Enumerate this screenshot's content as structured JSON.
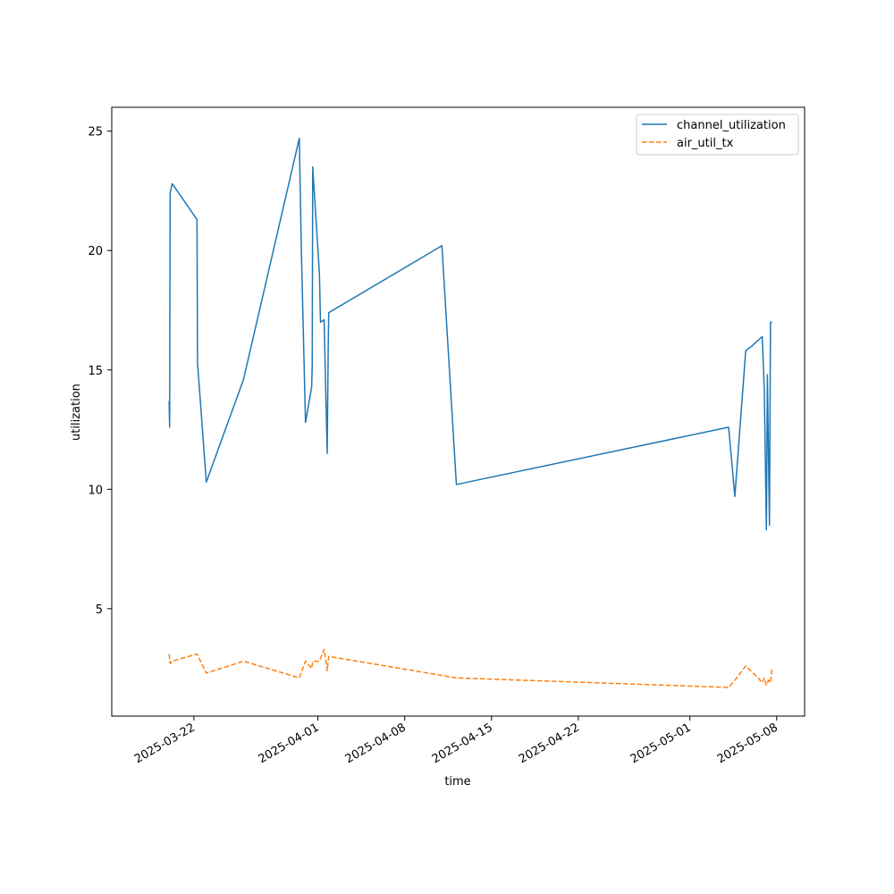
{
  "chart_data": {
    "type": "line",
    "title": "",
    "xlabel": "time",
    "ylabel": "utilization",
    "x_tick_labels": [
      "2025-03-22",
      "2025-04-01",
      "2025-04-08",
      "2025-04-15",
      "2025-04-22",
      "2025-05-01",
      "2025-05-08"
    ],
    "y_tick_labels": [
      "5",
      "10",
      "15",
      "20",
      "25"
    ],
    "xlim": [
      "2025-03-15T09:00",
      "2025-05-10T06:00"
    ],
    "ylim": [
      0.5,
      26.0
    ],
    "legend_position": "top-right",
    "grid": false,
    "series": [
      {
        "name": "channel_utilization",
        "color": "#1f77b4",
        "line_style": "solid",
        "x": [
          "2025-03-20T00:00",
          "2025-03-20T01:00",
          "2025-03-20T02:00",
          "2025-03-20T03:00",
          "2025-03-20T06:00",
          "2025-03-22T06:00",
          "2025-03-22T07:00",
          "2025-03-23T00:00",
          "2025-03-26T00:00",
          "2025-03-30T12:00",
          "2025-03-30T16:00",
          "2025-03-31T00:00",
          "2025-03-31T12:00",
          "2025-03-31T13:00",
          "2025-03-31T14:00",
          "2025-04-01T03:00",
          "2025-04-01T05:00",
          "2025-04-01T12:00",
          "2025-04-01T18:00",
          "2025-04-01T20:00",
          "2025-04-01T21:00",
          "2025-04-11T00:00",
          "2025-04-12T04:00",
          "2025-05-04T03:00",
          "2025-05-04T15:00",
          "2025-05-05T12:00",
          "2025-05-06T00:00",
          "2025-05-06T20:00",
          "2025-05-07T00:00",
          "2025-05-07T04:00",
          "2025-05-07T06:00",
          "2025-05-07T10:00",
          "2025-05-07T12:00",
          "2025-05-07T15:00"
        ],
        "values": [
          13.7,
          12.6,
          22.4,
          22.5,
          22.8,
          21.3,
          15.3,
          10.3,
          14.6,
          24.7,
          20.0,
          12.8,
          14.3,
          15.2,
          23.5,
          19.0,
          17.0,
          17.1,
          11.5,
          16.0,
          17.4,
          20.2,
          10.2,
          12.6,
          9.7,
          15.8,
          16.0,
          16.4,
          14.2,
          8.3,
          14.8,
          8.5,
          17.0,
          17.0
        ]
      },
      {
        "name": "air_util_tx",
        "color": "#ff7f0e",
        "line_style": "dashed",
        "x": [
          "2025-03-20T00:00",
          "2025-03-20T02:00",
          "2025-03-20T06:00",
          "2025-03-22T06:00",
          "2025-03-23T00:00",
          "2025-03-26T00:00",
          "2025-03-30T12:00",
          "2025-03-31T00:00",
          "2025-03-31T12:00",
          "2025-03-31T14:00",
          "2025-04-01T03:00",
          "2025-04-01T12:00",
          "2025-04-01T18:00",
          "2025-04-01T21:00",
          "2025-04-12T04:00",
          "2025-05-04T03:00",
          "2025-05-04T15:00",
          "2025-05-05T12:00",
          "2025-05-06T12:00",
          "2025-05-06T20:00",
          "2025-05-07T00:00",
          "2025-05-07T04:00",
          "2025-05-07T08:00",
          "2025-05-07T12:00",
          "2025-05-07T15:00"
        ],
        "values": [
          3.1,
          2.7,
          2.8,
          3.1,
          2.3,
          2.8,
          2.1,
          2.8,
          2.5,
          2.8,
          2.8,
          3.3,
          2.4,
          3.0,
          2.1,
          1.7,
          2.0,
          2.6,
          2.1,
          1.9,
          2.1,
          1.8,
          2.0,
          1.9,
          2.5
        ]
      }
    ]
  }
}
